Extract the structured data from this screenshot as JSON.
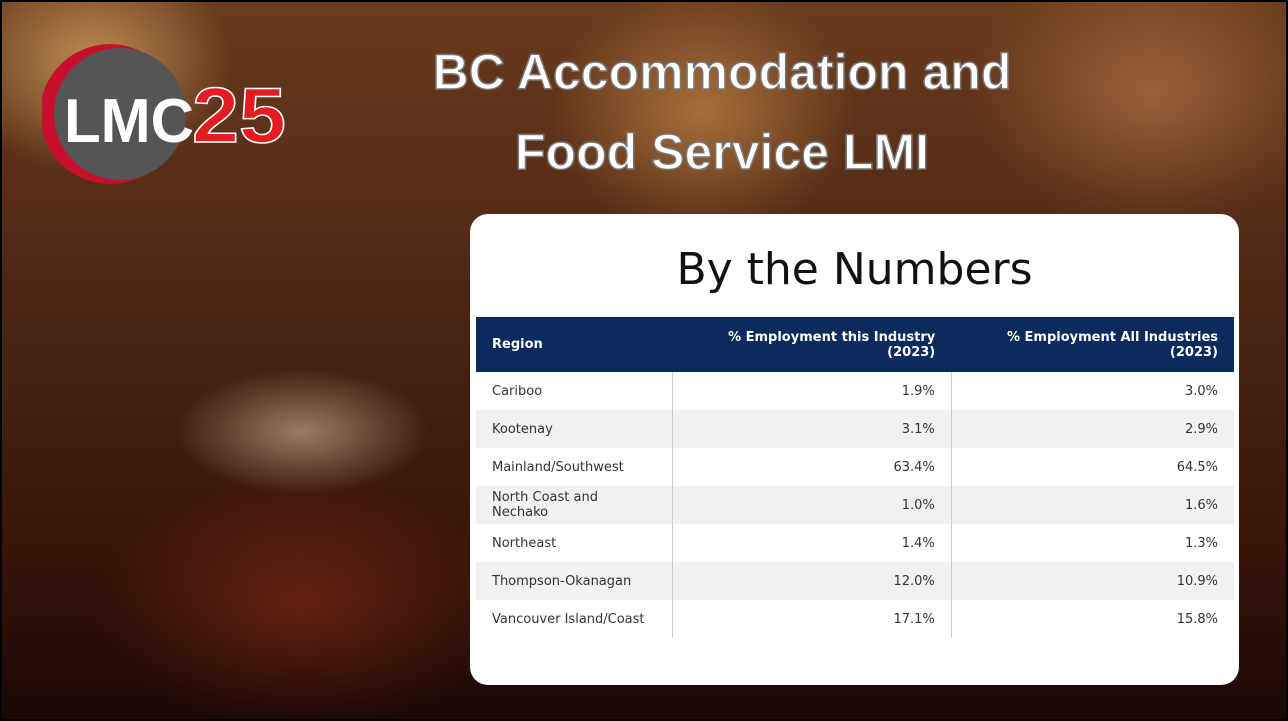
{
  "logo": {
    "left": "LMC",
    "right": "25"
  },
  "title": {
    "lines": [
      "BC Accommodation and",
      "Food Service LMI"
    ]
  },
  "card": {
    "heading": "By the Numbers",
    "table": {
      "header": [
        "Region",
        "% Employment this Industry (2023)",
        "% Employment All Industries (2023)"
      ],
      "rows": [
        [
          "Cariboo",
          "1.9%",
          "3.0%"
        ],
        [
          "Kootenay",
          "3.1%",
          "2.9%"
        ],
        [
          "Mainland/Southwest",
          "63.4%",
          "64.5%"
        ],
        [
          "North Coast and Nechako",
          "1.0%",
          "1.6%"
        ],
        [
          "Northeast",
          "1.4%",
          "1.3%"
        ],
        [
          "Thompson-Okanagan",
          "12.0%",
          "10.9%"
        ],
        [
          "Vancouver Island/Coast",
          "17.1%",
          "15.8%"
        ]
      ]
    }
  }
}
